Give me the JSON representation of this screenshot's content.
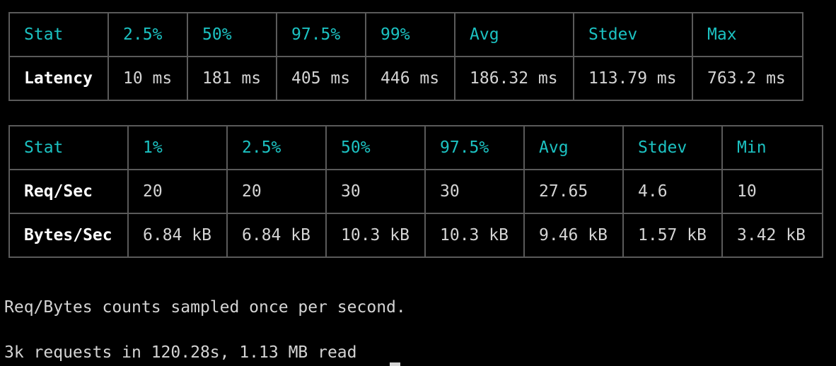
{
  "latency_table": {
    "headers": [
      "Stat",
      "2.5%",
      "50%",
      "97.5%",
      "99%",
      "Avg",
      "Stdev",
      "Max"
    ],
    "rows": [
      {
        "label": "Latency",
        "values": [
          "10 ms",
          "181 ms",
          "405 ms",
          "446 ms",
          "186.32 ms",
          "113.79 ms",
          "763.2 ms"
        ]
      }
    ]
  },
  "throughput_table": {
    "headers": [
      "Stat",
      "1%",
      "2.5%",
      "50%",
      "97.5%",
      "Avg",
      "Stdev",
      "Min"
    ],
    "rows": [
      {
        "label": "Req/Sec",
        "values": [
          "20",
          "20",
          "30",
          "30",
          "27.65",
          "4.6",
          "10"
        ]
      },
      {
        "label": "Bytes/Sec",
        "values": [
          "6.84 kB",
          "6.84 kB",
          "10.3 kB",
          "10.3 kB",
          "9.46 kB",
          "1.57 kB",
          "3.42 kB"
        ]
      }
    ]
  },
  "notes": {
    "sampling": "Req/Bytes counts sampled once per second.",
    "summary": "3k requests in 120.28s, 1.13 MB read"
  },
  "colors": {
    "header_cyan": "#1cc2c2",
    "label_white": "#ffffff",
    "value_gray": "#d4d4d4",
    "border": "#5a5a5a",
    "background": "#000000"
  }
}
